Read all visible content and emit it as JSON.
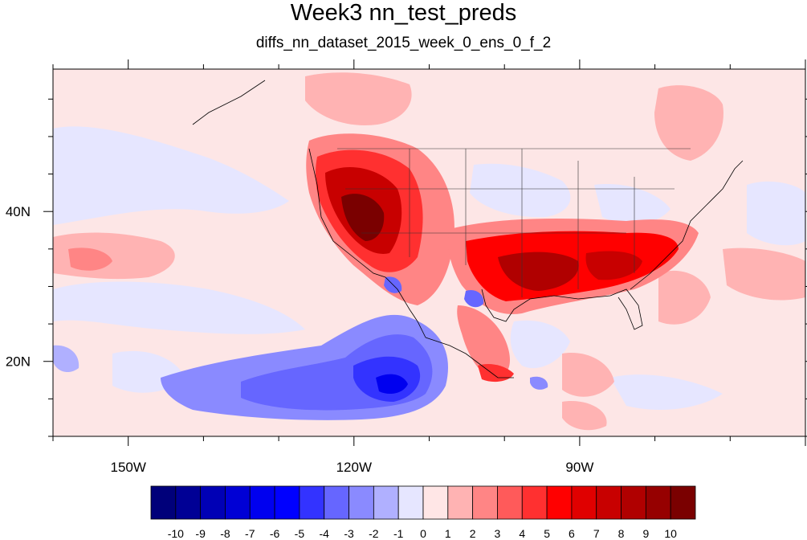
{
  "title": "Week3 nn_test_preds",
  "subtitle": "diffs_nn_dataset_2015_week_0_ens_0_f_2",
  "map": {
    "lon_range": [
      -160,
      -60
    ],
    "lat_range": [
      10,
      59
    ],
    "lon_tick_labels": [
      {
        "lon": -150,
        "label": "150W"
      },
      {
        "lon": -120,
        "label": "120W"
      },
      {
        "lon": -90,
        "label": "90W"
      }
    ],
    "lat_tick_labels": [
      {
        "lat": 40,
        "label": "40N"
      },
      {
        "lat": 20,
        "label": "20N"
      }
    ],
    "background_color": "#fde6e6"
  },
  "colorbar": {
    "colors": [
      "#00007a",
      "#000095",
      "#0000b5",
      "#0000d5",
      "#0000ef",
      "#0000ff",
      "#3333ff",
      "#6666ff",
      "#8a8aff",
      "#b0b0ff",
      "#e6e6ff",
      "#ffe6e6",
      "#ffb3b3",
      "#ff8585",
      "#ff5a5a",
      "#ff3030",
      "#ff0000",
      "#e00000",
      "#c80000",
      "#b00000",
      "#960000",
      "#7a0000"
    ],
    "labels": [
      "-10",
      "-9",
      "-8",
      "-7",
      "-6",
      "-5",
      "-4",
      "-3",
      "-2",
      "-1",
      "0",
      "1",
      "2",
      "3",
      "4",
      "5",
      "6",
      "7",
      "8",
      "9",
      "10"
    ]
  },
  "anomaly_regions": [
    {
      "name": "western-us-warm",
      "color": "#ff8585"
    },
    {
      "name": "western-us-core",
      "color": "#c80000"
    },
    {
      "name": "southern-us-warm",
      "color": "#ff3030"
    },
    {
      "name": "southern-us-core",
      "color": "#b00000"
    },
    {
      "name": "pacific-cold",
      "color": "#6666ff"
    },
    {
      "name": "pacific-cold-core",
      "color": "#0000ef"
    },
    {
      "name": "north-pacific-cool",
      "color": "#e6e6ff"
    },
    {
      "name": "canada-warm",
      "color": "#ffb3b3"
    }
  ]
}
